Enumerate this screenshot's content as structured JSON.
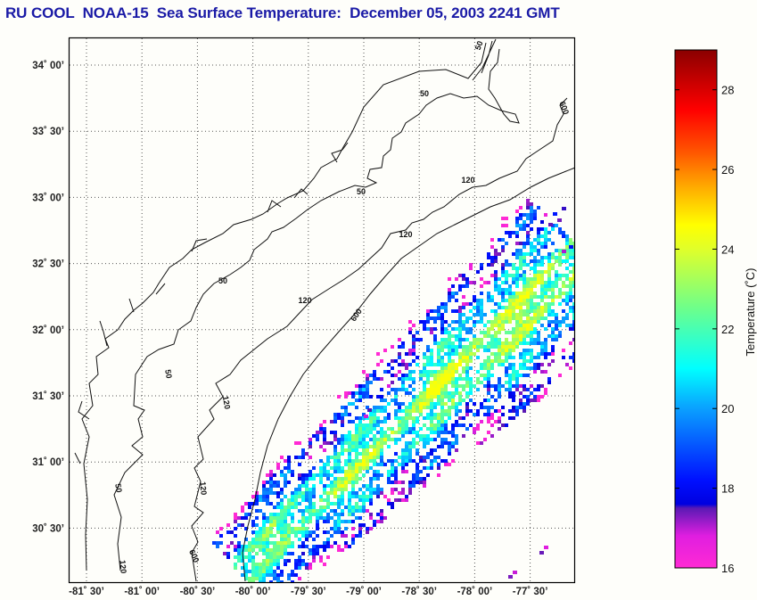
{
  "title": "RU COOL  NOAA-15  Sea Surface Temperature:  December 05, 2003 2241 GMT",
  "chart_data": {
    "type": "heatmap",
    "title": "RU COOL  NOAA-15  Sea Surface Temperature:  December 05, 2003 2241 GMT",
    "lon_range": [
      -81.6,
      -77.25
    ],
    "lat_range": [
      30.05,
      34.2
    ],
    "lat_ticks": [
      {
        "value": 34.0,
        "label": "34˚ 00’"
      },
      {
        "value": 33.5,
        "label": "33˚ 30’"
      },
      {
        "value": 33.0,
        "label": "33˚ 00’"
      },
      {
        "value": 32.5,
        "label": "32˚ 30’"
      },
      {
        "value": 32.0,
        "label": "32˚ 00’"
      },
      {
        "value": 31.5,
        "label": "31˚ 30’"
      },
      {
        "value": 31.0,
        "label": "31˚ 00’"
      },
      {
        "value": 30.5,
        "label": "30˚ 30’"
      }
    ],
    "lon_ticks": [
      {
        "value": -81.5,
        "label": "-81˚ 30’"
      },
      {
        "value": -81.0,
        "label": "-81˚ 00’"
      },
      {
        "value": -80.5,
        "label": "-80˚ 30’"
      },
      {
        "value": -80.0,
        "label": "-80˚ 00’"
      },
      {
        "value": -79.5,
        "label": "-79˚ 30’"
      },
      {
        "value": -79.0,
        "label": "-79˚ 00’"
      },
      {
        "value": -78.5,
        "label": "-78˚ 30’"
      },
      {
        "value": -78.0,
        "label": "-78˚ 00’"
      },
      {
        "value": -77.5,
        "label": "-77˚ 30’"
      }
    ],
    "grid": true,
    "colorbar": {
      "label": "Temperature (˚C)",
      "range": [
        16,
        29
      ],
      "ticks": [
        16,
        18,
        20,
        22,
        24,
        26,
        28
      ],
      "tick_labels": [
        "16",
        "18",
        "20",
        "22",
        "24",
        "26",
        "28"
      ],
      "colors": [
        {
          "t": 16,
          "c": "#ff2ad4"
        },
        {
          "t": 16.8,
          "c": "#e01ee0"
        },
        {
          "t": 17.5,
          "c": "#5a1ab4"
        },
        {
          "t": 17.6,
          "c": "#0000e0"
        },
        {
          "t": 18.2,
          "c": "#0010ff"
        },
        {
          "t": 20,
          "c": "#0aa0ff"
        },
        {
          "t": 21,
          "c": "#00ffff"
        },
        {
          "t": 22.5,
          "c": "#6cff8c"
        },
        {
          "t": 24,
          "c": "#e0ff2a"
        },
        {
          "t": 24.6,
          "c": "#ffff00"
        },
        {
          "t": 25.5,
          "c": "#ffb000"
        },
        {
          "t": 26.5,
          "c": "#ff5000"
        },
        {
          "t": 27.5,
          "c": "#ff0000"
        },
        {
          "t": 29,
          "c": "#8a0000"
        }
      ]
    },
    "contour_labels": [
      "50",
      "50",
      "50",
      "50",
      "50",
      "50",
      "120",
      "120",
      "120",
      "120",
      "120",
      "120",
      "600",
      "600",
      "600"
    ],
    "sst_observed_range_c": [
      16,
      24.5
    ]
  }
}
